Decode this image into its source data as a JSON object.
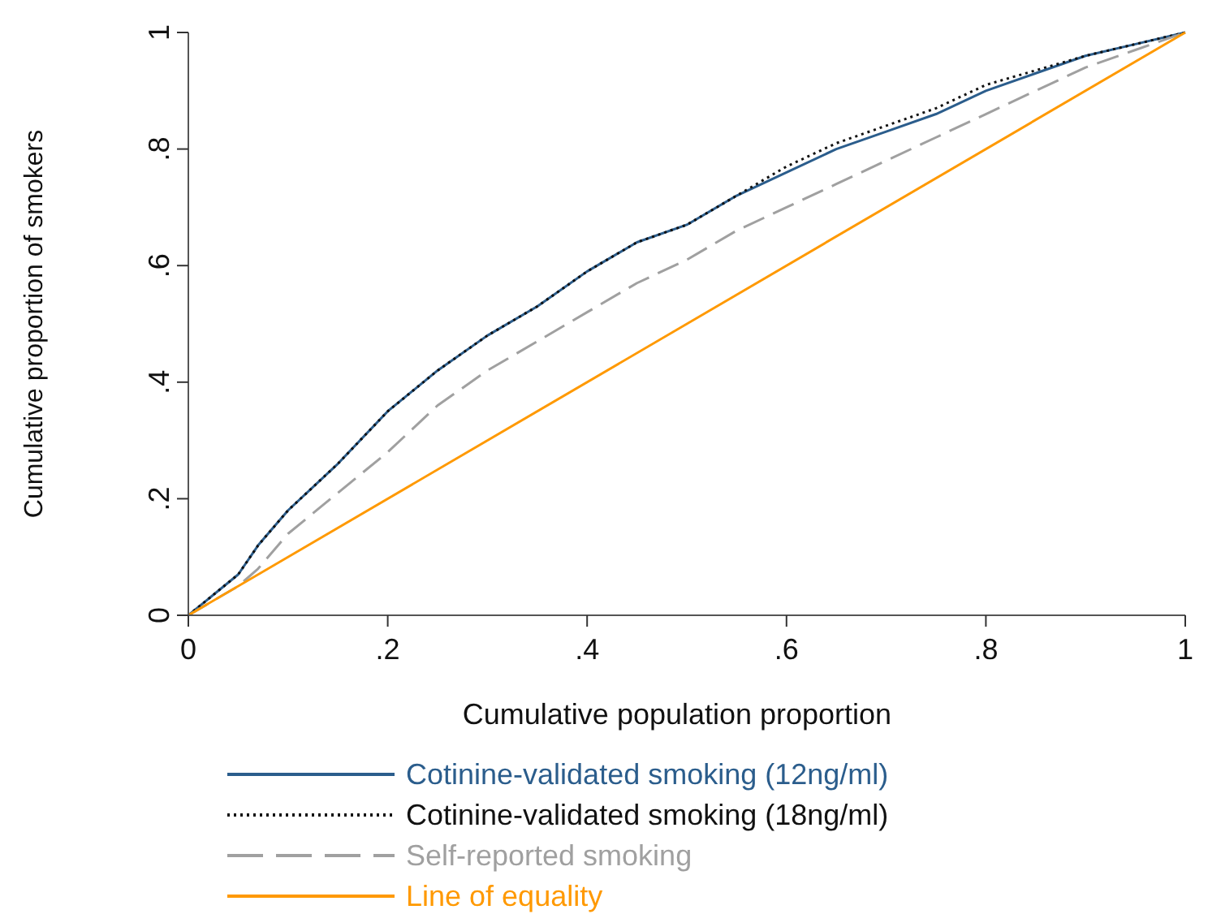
{
  "chart_data": {
    "type": "line",
    "xlabel": "Cumulative population proportion",
    "ylabel": "Cumulative proportion of smokers",
    "xlim": [
      0,
      1
    ],
    "ylim": [
      0,
      1
    ],
    "xticks": [
      0,
      {
        "value": 0.2,
        "label": ".2"
      },
      {
        "value": 0.4,
        "label": ".4"
      },
      {
        "value": 0.6,
        "label": ".6"
      },
      {
        "value": 0.8,
        "label": ".8"
      },
      1
    ],
    "yticks": [
      0,
      {
        "value": 0.2,
        "label": ".2"
      },
      {
        "value": 0.4,
        "label": ".4"
      },
      {
        "value": 0.6,
        "label": ".6"
      },
      {
        "value": 0.8,
        "label": ".8"
      },
      1
    ],
    "grid": false,
    "legend": "bottom",
    "marker": "none",
    "x": [
      0,
      0.05,
      0.07,
      0.1,
      0.15,
      0.2,
      0.25,
      0.3,
      0.35,
      0.4,
      0.45,
      0.5,
      0.55,
      0.6,
      0.65,
      0.7,
      0.75,
      0.8,
      0.85,
      0.9,
      0.95,
      1
    ],
    "series": [
      {
        "name": "Cotinine-validated smoking (12ng/ml)",
        "color": "#2b5d8c",
        "line_style": "solid",
        "values": [
          0,
          0.07,
          0.12,
          0.18,
          0.26,
          0.35,
          0.42,
          0.48,
          0.53,
          0.59,
          0.64,
          0.67,
          0.72,
          0.76,
          0.8,
          0.83,
          0.86,
          0.9,
          0.93,
          0.96,
          0.98,
          1
        ]
      },
      {
        "name": "Cotinine-validated smoking (18ng/ml)",
        "color": "#111111",
        "line_style": "dotted",
        "values": [
          0,
          0.07,
          0.12,
          0.18,
          0.26,
          0.35,
          0.42,
          0.48,
          0.53,
          0.59,
          0.64,
          0.67,
          0.72,
          0.77,
          0.81,
          0.84,
          0.87,
          0.91,
          0.935,
          0.96,
          0.98,
          1
        ]
      },
      {
        "name": "Self-reported smoking",
        "color": "#a0a0a0",
        "line_style": "dashed",
        "values": [
          0,
          0.05,
          0.08,
          0.14,
          0.21,
          0.28,
          0.36,
          0.42,
          0.47,
          0.52,
          0.57,
          0.61,
          0.66,
          0.7,
          0.74,
          0.78,
          0.82,
          0.86,
          0.9,
          0.94,
          0.97,
          1
        ]
      },
      {
        "name": "Line of equality",
        "color": "#ff9900",
        "line_style": "solid",
        "x": [
          0,
          1
        ],
        "values": [
          0,
          1
        ]
      }
    ]
  }
}
